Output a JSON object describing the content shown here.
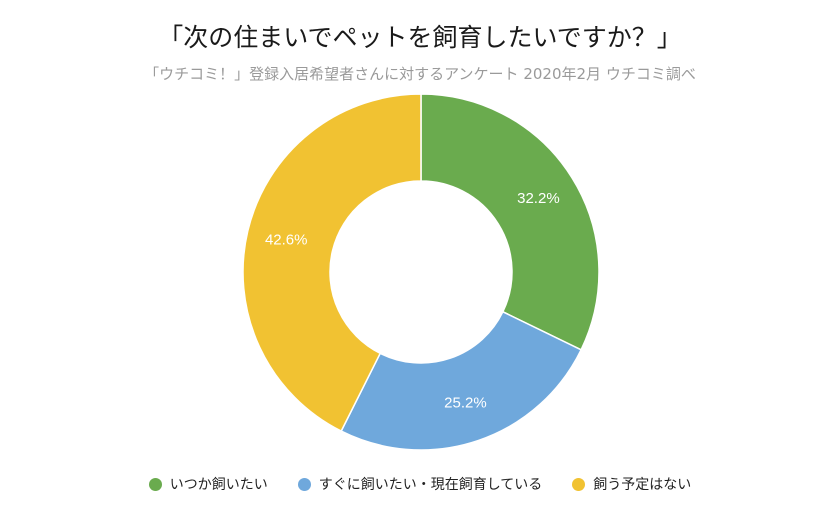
{
  "chart_data": {
    "type": "pie",
    "donut": true,
    "title": "「次の住まいでペットを飼育したいですか？」",
    "subtitle": "「ウチコミ！」登録入居希望者さんに対するアンケート 2020年2月 ウチコミ調べ",
    "slices": [
      {
        "label": "いつか飼いたい",
        "value": 32.2,
        "display": "32.2%",
        "color": "#6aab4e"
      },
      {
        "label": "すぐに飼いたい・現在飼育している",
        "value": 25.2,
        "display": "25.2%",
        "color": "#6fa8dc"
      },
      {
        "label": "飼う予定はない",
        "value": 42.6,
        "display": "42.6%",
        "color": "#f1c232"
      }
    ],
    "legend_position": "bottom",
    "start_angle": "12 o'clock, clockwise"
  }
}
